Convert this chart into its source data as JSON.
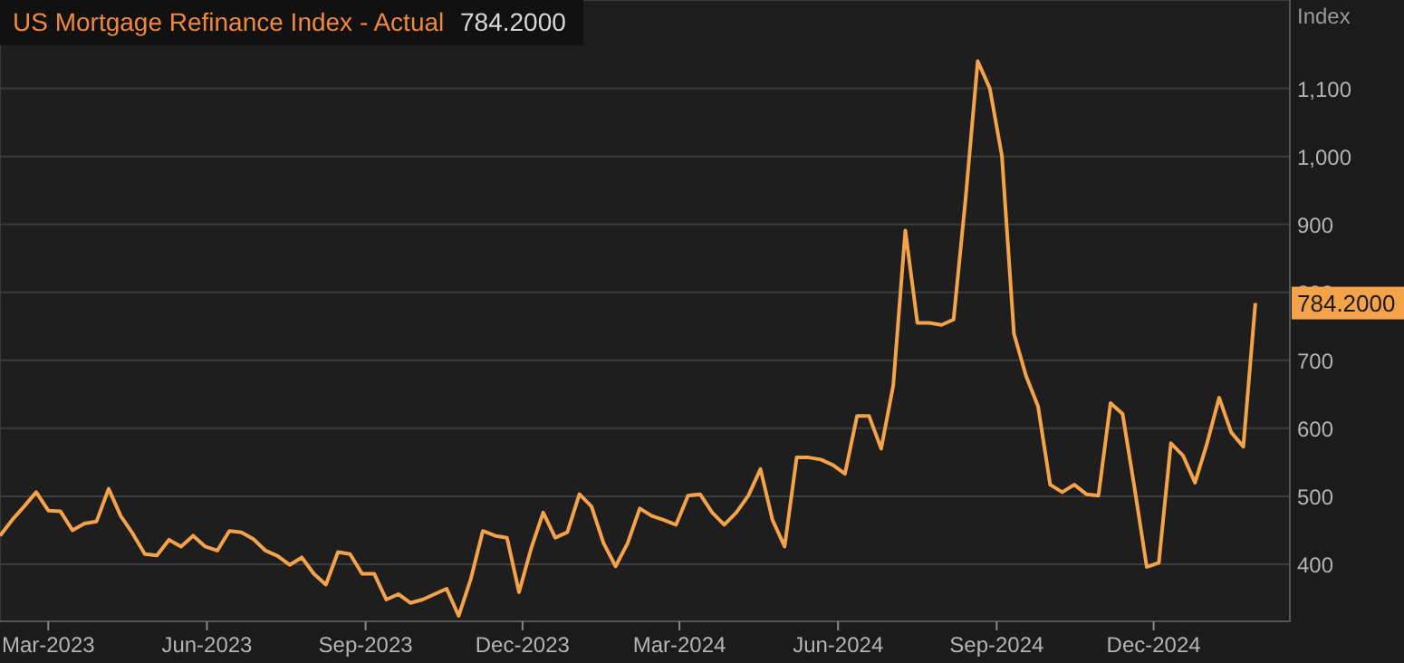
{
  "chart_data": {
    "type": "line",
    "title": "US Mortgage Refinance Index - Actual",
    "subtitle": "784.2000",
    "ylabel": "Index",
    "x": [
      "2023-02-01",
      "2023-02-08",
      "2023-02-15",
      "2023-02-22",
      "2023-03-01",
      "2023-03-08",
      "2023-03-15",
      "2023-03-22",
      "2023-03-29",
      "2023-04-05",
      "2023-04-12",
      "2023-04-19",
      "2023-04-26",
      "2023-05-03",
      "2023-05-10",
      "2023-05-17",
      "2023-05-24",
      "2023-05-31",
      "2023-06-07",
      "2023-06-14",
      "2023-06-21",
      "2023-06-28",
      "2023-07-05",
      "2023-07-12",
      "2023-07-19",
      "2023-07-26",
      "2023-08-02",
      "2023-08-09",
      "2023-08-16",
      "2023-08-23",
      "2023-08-30",
      "2023-09-06",
      "2023-09-13",
      "2023-09-20",
      "2023-09-27",
      "2023-10-04",
      "2023-10-11",
      "2023-10-18",
      "2023-10-25",
      "2023-11-01",
      "2023-11-08",
      "2023-11-15",
      "2023-11-22",
      "2023-11-29",
      "2023-12-06",
      "2023-12-13",
      "2023-12-20",
      "2023-12-27",
      "2024-01-03",
      "2024-01-10",
      "2024-01-17",
      "2024-01-24",
      "2024-01-31",
      "2024-02-07",
      "2024-02-14",
      "2024-02-21",
      "2024-02-28",
      "2024-03-06",
      "2024-03-13",
      "2024-03-20",
      "2024-03-27",
      "2024-04-03",
      "2024-04-10",
      "2024-04-17",
      "2024-04-24",
      "2024-05-01",
      "2024-05-08",
      "2024-05-15",
      "2024-05-22",
      "2024-05-29",
      "2024-06-05",
      "2024-06-12",
      "2024-06-19",
      "2024-06-26",
      "2024-07-03",
      "2024-07-10",
      "2024-07-17",
      "2024-07-24",
      "2024-07-31",
      "2024-08-07",
      "2024-08-14",
      "2024-08-21",
      "2024-08-28",
      "2024-09-04",
      "2024-09-11",
      "2024-09-18",
      "2024-09-25",
      "2024-10-02",
      "2024-10-09",
      "2024-10-16",
      "2024-10-23",
      "2024-10-30",
      "2024-11-06",
      "2024-11-13",
      "2024-11-20",
      "2024-11-27",
      "2024-12-04",
      "2024-12-11",
      "2024-12-18",
      "2024-12-25",
      "2025-01-01",
      "2025-01-08",
      "2025-01-15",
      "2025-01-22",
      "2025-01-29"
    ],
    "series": [
      {
        "color": "#f5a34a",
        "values": [
          442,
          465,
          485,
          506,
          479,
          478,
          450,
          460,
          463,
          511,
          471,
          445,
          415,
          413,
          436,
          426,
          442,
          426,
          420,
          449,
          447,
          437,
          420,
          412,
          399,
          410,
          386,
          370,
          418,
          415,
          386,
          386,
          348,
          356,
          343,
          348,
          356,
          364,
          324,
          378,
          449,
          442,
          439,
          359,
          423,
          476,
          439,
          447,
          503,
          485,
          431,
          397,
          431,
          482,
          471,
          465,
          458,
          501,
          503,
          476,
          458,
          476,
          501,
          540,
          465,
          426,
          557,
          557,
          554,
          546,
          533,
          618,
          618,
          570,
          663,
          891,
          755,
          755,
          752,
          760,
          939,
          1140,
          1100,
          1001,
          739,
          677,
          632,
          517,
          506,
          517,
          503,
          501,
          637,
          621,
          511,
          396,
          402,
          578,
          560,
          520,
          578,
          645,
          594,
          573,
          784.2
        ],
        "value_labels": [
          null,
          null,
          null,
          null,
          null,
          null,
          null,
          null,
          null,
          null,
          null,
          null,
          null,
          null,
          null,
          null,
          null,
          null,
          null,
          null,
          null,
          null,
          null,
          null,
          null,
          null,
          null,
          null,
          null,
          null,
          null,
          null,
          null,
          null,
          null,
          null,
          null,
          null,
          null,
          null,
          null,
          null,
          null,
          null,
          null,
          null,
          null,
          null,
          null,
          null,
          null,
          null,
          null,
          null,
          null,
          null,
          null,
          null,
          null,
          null,
          null,
          null,
          null,
          null,
          null,
          null,
          null,
          null,
          null,
          null,
          null,
          null,
          null,
          null,
          null,
          null,
          null,
          null,
          null,
          null,
          null,
          null,
          null,
          null,
          null,
          null,
          null,
          null,
          null,
          null,
          null,
          null,
          null,
          null,
          null,
          null,
          null,
          null,
          null,
          null,
          null,
          null,
          null,
          null,
          "784.2000"
        ]
      }
    ],
    "xlim": [
      "2023-02-01",
      "2025-02-18"
    ],
    "xticks": [
      {
        "value": "2023-03-01",
        "label": "Mar-2023"
      },
      {
        "value": "2023-06-01",
        "label": "Jun-2023"
      },
      {
        "value": "2023-09-01",
        "label": "Sep-2023"
      },
      {
        "value": "2023-12-01",
        "label": "Dec-2023"
      },
      {
        "value": "2024-03-01",
        "label": "Mar-2024"
      },
      {
        "value": "2024-06-01",
        "label": "Jun-2024"
      },
      {
        "value": "2024-09-01",
        "label": "Sep-2024"
      },
      {
        "value": "2024-12-01",
        "label": "Dec-2024"
      }
    ],
    "ylim": [
      316,
      1230
    ],
    "yticks": [
      400,
      500,
      600,
      700,
      800,
      900,
      {
        "value": 1000,
        "label": "1,000"
      },
      {
        "value": 1100,
        "label": "1,100"
      }
    ],
    "grid": "y",
    "marker": "none",
    "line_style": "solid"
  }
}
